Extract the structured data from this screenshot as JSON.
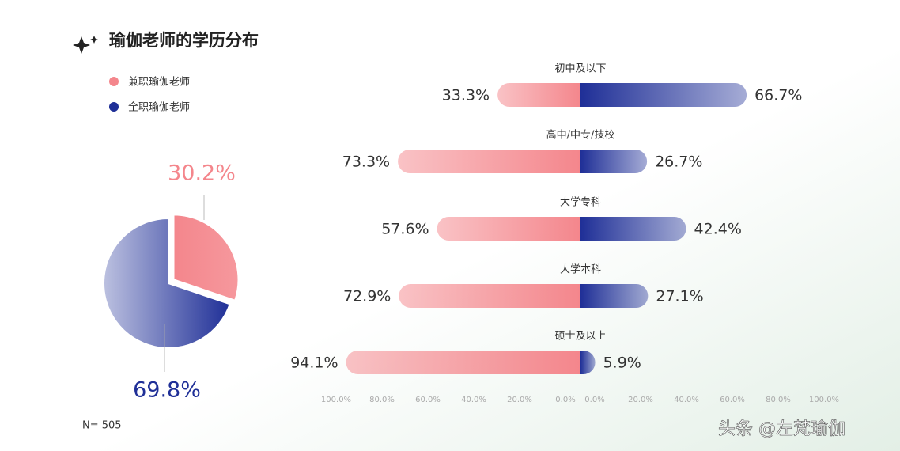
{
  "title": "瑜伽老师的学历分布",
  "note": "N= 505",
  "watermark": "头条 @左梵瑜伽",
  "chart_data": [
    {
      "type": "pie",
      "values": [
        30.2,
        69.8
      ],
      "value_labels": [
        "30.2%",
        "69.8%"
      ],
      "colors": [
        "#f4868c",
        "#1f2f97"
      ]
    },
    {
      "type": "diverging_bar",
      "categories": [
        "初中及以下",
        "高中/中专/技校",
        "大学专科",
        "大学本科",
        "硕士及以上"
      ],
      "series": [
        {
          "name": "兼职瑜伽老师",
          "color": "#f4868c",
          "values": [
            33.3,
            73.3,
            57.6,
            72.9,
            94.1
          ],
          "value_labels": [
            "33.3%",
            "73.3%",
            "57.6%",
            "72.9%",
            "94.1%"
          ]
        },
        {
          "name": "全职瑜伽老师",
          "color": "#1f2f97",
          "values": [
            66.7,
            26.7,
            42.4,
            27.1,
            5.9
          ],
          "value_labels": [
            "66.7%",
            "26.7%",
            "42.4%",
            "27.1%",
            "5.9%"
          ]
        }
      ],
      "xlim": [
        0,
        100
      ],
      "xticks": [
        {
          "value": 100,
          "label": "100.0%"
        },
        {
          "value": 80,
          "label": "80.0%"
        },
        {
          "value": 60,
          "label": "60.0%"
        },
        {
          "value": 40,
          "label": "40.0%"
        },
        {
          "value": 20,
          "label": "20.0%"
        },
        {
          "value": 0,
          "label": "0.0%"
        }
      ],
      "x2ticks": [
        {
          "value": 0,
          "label": "0.0%"
        },
        {
          "value": 20,
          "label": "20.0%"
        },
        {
          "value": 40,
          "label": "40.0%"
        },
        {
          "value": 60,
          "label": "60.0%"
        },
        {
          "value": 80,
          "label": "80.0%"
        },
        {
          "value": 100,
          "label": "100.0%"
        }
      ]
    }
  ]
}
